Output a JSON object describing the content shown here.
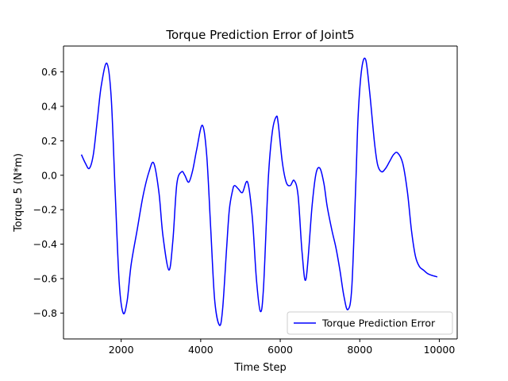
{
  "chart_data": {
    "type": "line",
    "title": "Torque Prediction Error of Joint5",
    "xlabel": "Time Step",
    "ylabel": "Torque 5 (N*m)",
    "xlim": [
      550,
      10450
    ],
    "ylim": [
      -0.95,
      0.75
    ],
    "xticks": [
      2000,
      4000,
      6000,
      8000,
      10000
    ],
    "yticks": [
      -0.8,
      -0.6,
      -0.4,
      -0.2,
      0.0,
      0.2,
      0.4,
      0.6
    ],
    "ytick_labels": [
      "−0.8",
      "−0.6",
      "−0.4",
      "−0.2",
      "0.0",
      "0.2",
      "0.4",
      "0.6"
    ],
    "grid": false,
    "legend": {
      "position": "lower-right",
      "entries": [
        "Torque Prediction Error"
      ]
    },
    "colors": {
      "series": "#0000ff",
      "axes": "#000000"
    },
    "series": [
      {
        "name": "Torque Prediction Error",
        "x": [
          1000,
          1100,
          1200,
          1300,
          1400,
          1500,
          1640,
          1750,
          1850,
          1950,
          2050,
          2150,
          2250,
          2400,
          2550,
          2700,
          2820,
          2950,
          3050,
          3200,
          3300,
          3400,
          3520,
          3600,
          3700,
          3800,
          3900,
          4040,
          4150,
          4250,
          4350,
          4470,
          4550,
          4650,
          4720,
          4800,
          4850,
          4950,
          5050,
          5180,
          5300,
          5400,
          5500,
          5580,
          5700,
          5800,
          5900,
          5950,
          6050,
          6150,
          6250,
          6350,
          6450,
          6550,
          6650,
          6800,
          6900,
          7000,
          7100,
          7180,
          7300,
          7400,
          7500,
          7600,
          7700,
          7800,
          7900,
          7960,
          8050,
          8150,
          8250,
          8370,
          8450,
          8550,
          8650,
          8750,
          8850,
          8950,
          9080,
          9200,
          9300,
          9400,
          9500,
          9600,
          9700,
          9800,
          9950
        ],
        "y": [
          0.12,
          0.07,
          0.04,
          0.12,
          0.32,
          0.52,
          0.65,
          0.45,
          -0.1,
          -0.62,
          -0.8,
          -0.73,
          -0.52,
          -0.32,
          -0.12,
          0.02,
          0.07,
          -0.1,
          -0.35,
          -0.55,
          -0.38,
          -0.05,
          0.02,
          0.0,
          -0.04,
          0.03,
          0.15,
          0.29,
          0.12,
          -0.3,
          -0.72,
          -0.87,
          -0.78,
          -0.43,
          -0.2,
          -0.09,
          -0.06,
          -0.08,
          -0.1,
          -0.04,
          -0.25,
          -0.6,
          -0.79,
          -0.65,
          -0.02,
          0.25,
          0.34,
          0.3,
          0.08,
          -0.04,
          -0.06,
          -0.03,
          -0.12,
          -0.45,
          -0.6,
          -0.18,
          0.01,
          0.04,
          -0.05,
          -0.18,
          -0.32,
          -0.42,
          -0.55,
          -0.7,
          -0.78,
          -0.65,
          -0.05,
          0.35,
          0.62,
          0.67,
          0.48,
          0.19,
          0.06,
          0.02,
          0.04,
          0.08,
          0.12,
          0.13,
          0.07,
          -0.1,
          -0.32,
          -0.47,
          -0.53,
          -0.55,
          -0.57,
          -0.58,
          -0.59
        ]
      }
    ]
  }
}
